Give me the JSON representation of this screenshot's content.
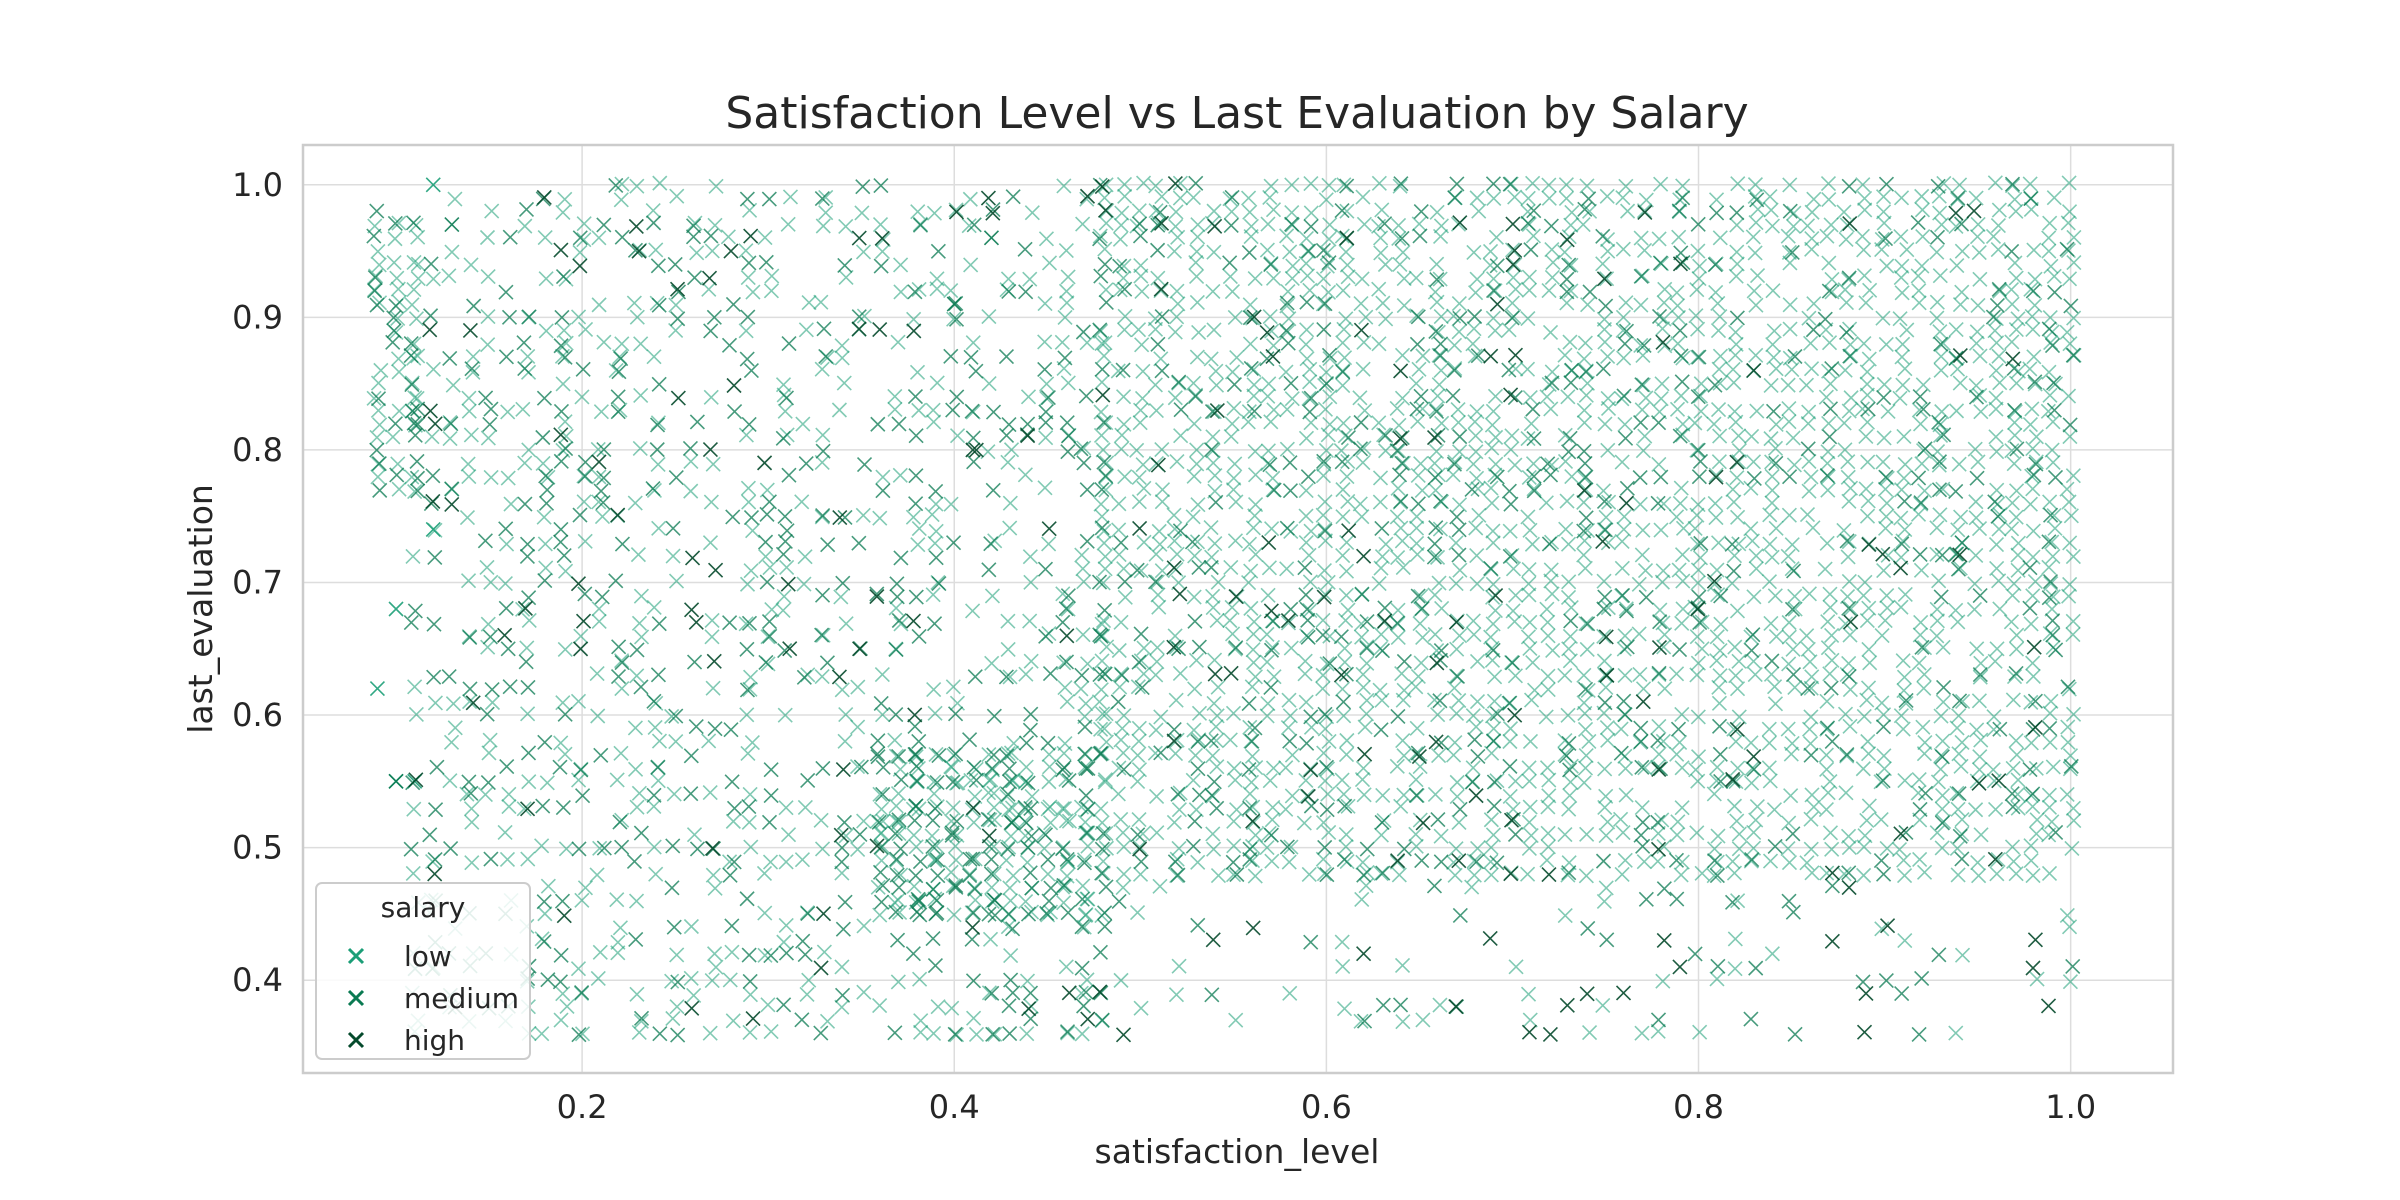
{
  "chart_data": {
    "type": "scatter",
    "title": "Satisfaction Level vs Last Evaluation by Salary",
    "xlabel": "satisfaction_level",
    "ylabel": "last_evaluation",
    "xlim": [
      0.05,
      1.055
    ],
    "ylim": [
      0.33,
      1.03
    ],
    "xticks": [
      0.2,
      0.4,
      0.6,
      0.8,
      1.0
    ],
    "xtick_labels": [
      "0.2",
      "0.4",
      "0.6",
      "0.8",
      "1.0"
    ],
    "yticks": [
      0.4,
      0.5,
      0.6,
      0.7,
      0.8,
      0.9,
      1.0
    ],
    "ytick_labels": [
      "0.4",
      "0.5",
      "0.6",
      "0.7",
      "0.8",
      "0.9",
      "1.0"
    ],
    "grid": true,
    "marker": "x",
    "legend": {
      "title": "salary",
      "placement": "lower-left"
    },
    "series": [
      {
        "name": "low",
        "color": "#1b9e77",
        "clusters": [
          {
            "x": [
              0.09,
              0.11
            ],
            "y": [
              0.77,
              0.98
            ],
            "density": "high"
          },
          {
            "x": [
              0.36,
              0.47
            ],
            "y": [
              0.45,
              0.57
            ],
            "density": "high"
          },
          {
            "x": [
              0.48,
              1.0
            ],
            "y": [
              0.48,
              1.0
            ],
            "density": "high"
          },
          {
            "x": [
              0.11,
              0.48
            ],
            "y": [
              0.36,
              1.0
            ],
            "density": "medium"
          },
          {
            "x": [
              0.48,
              1.0
            ],
            "y": [
              0.36,
              0.47
            ],
            "density": "low"
          }
        ],
        "points": [
          [
            0.09,
            0.62
          ],
          [
            0.1,
            0.68
          ],
          [
            0.1,
            0.55
          ],
          [
            0.11,
            0.55
          ],
          [
            0.12,
            1.0
          ],
          [
            0.12,
            0.74
          ]
        ]
      },
      {
        "name": "medium",
        "color": "#0a7a52",
        "clusters": [
          {
            "x": [
              0.09,
              0.11
            ],
            "y": [
              0.77,
              0.98
            ],
            "density": "high"
          },
          {
            "x": [
              0.36,
              0.47
            ],
            "y": [
              0.45,
              0.57
            ],
            "density": "high"
          },
          {
            "x": [
              0.48,
              1.0
            ],
            "y": [
              0.48,
              1.0
            ],
            "density": "medium"
          },
          {
            "x": [
              0.11,
              0.48
            ],
            "y": [
              0.36,
              1.0
            ],
            "density": "medium"
          },
          {
            "x": [
              0.48,
              1.0
            ],
            "y": [
              0.36,
              0.47
            ],
            "density": "low"
          }
        ],
        "points": [
          [
            0.1,
            0.55
          ],
          [
            0.13,
            0.97
          ],
          [
            0.4,
            0.91
          ],
          [
            0.42,
            0.96
          ]
        ]
      },
      {
        "name": "high",
        "color": "#054a2c",
        "clusters": [
          {
            "x": [
              0.48,
              1.0
            ],
            "y": [
              0.48,
              1.0
            ],
            "density": "low"
          },
          {
            "x": [
              0.11,
              0.48
            ],
            "y": [
              0.36,
              1.0
            ],
            "density": "low"
          },
          {
            "x": [
              0.48,
              1.0
            ],
            "y": [
              0.36,
              0.47
            ],
            "density": "low"
          }
        ],
        "points": [
          [
            0.28,
            0.95
          ],
          [
            0.41,
            0.8
          ],
          [
            0.62,
            0.42
          ],
          [
            0.79,
            0.41
          ],
          [
            0.89,
            0.39
          ]
        ]
      }
    ]
  }
}
